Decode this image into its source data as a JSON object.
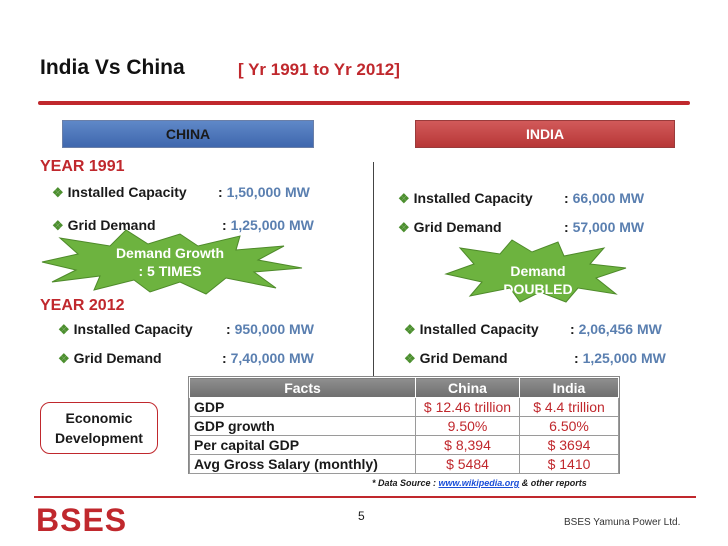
{
  "title": "India Vs China",
  "subtitle": "[ Yr 1991 to Yr 2012]",
  "headers": {
    "china": "CHINA",
    "india": "INDIA"
  },
  "year1991": {
    "label": "YEAR 1991",
    "china": {
      "installed_label": "Installed Capacity",
      "installed_value": "1,50,000 MW",
      "grid_label": "Grid Demand",
      "grid_value": "1,25,000 MW"
    },
    "india": {
      "installed_label": "Installed Capacity",
      "installed_value": "66,000 MW",
      "grid_label": "Grid Demand",
      "grid_value": "57,000 MW"
    }
  },
  "year2012": {
    "label": "YEAR 2012",
    "china": {
      "installed_label": "Installed Capacity",
      "installed_value": "950,000 MW",
      "grid_label": "Grid Demand",
      "grid_value": "7,40,000 MW"
    },
    "india": {
      "installed_label": "Installed Capacity",
      "installed_value": "2,06,456 MW",
      "grid_label": "Grid Demand",
      "grid_value": "1,25,000 MW"
    }
  },
  "bursts": {
    "china_line1": "Demand Growth",
    "china_line2": ": 5 TIMES",
    "india_line1": "Demand",
    "india_line2": "DOUBLED"
  },
  "econ_label_line1": "Economic",
  "econ_label_line2": "Development",
  "facts": {
    "headers": [
      "Facts",
      "China",
      "India"
    ],
    "rows": [
      [
        "GDP",
        "$ 12.46 trillion",
        "$ 4.4 trillion"
      ],
      [
        "GDP growth",
        "9.50%",
        "6.50%"
      ],
      [
        "Per capital GDP",
        "$ 8,394",
        "$ 3694"
      ],
      [
        "Avg Gross Salary (monthly)",
        "$ 5484",
        "$ 1410"
      ]
    ]
  },
  "source": {
    "prefix": "* Data Source : ",
    "link": "www.wikipedia.org",
    "suffix": " & other reports"
  },
  "footer": {
    "logo_text": "BSES",
    "page_number": "5",
    "company": "BSES Yamuna Power Ltd."
  },
  "colors": {
    "accent_red": "#c0282d",
    "china_blue": "#4a74b8",
    "india_red": "#c0504d",
    "burst_green": "#6db33f",
    "value_blue": "#5a7fb0"
  }
}
